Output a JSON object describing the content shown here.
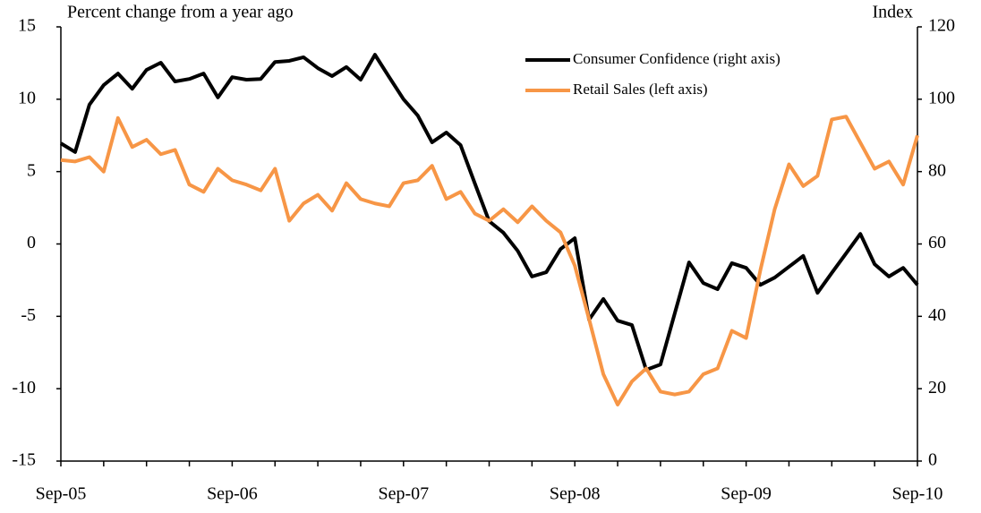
{
  "chart_data": {
    "type": "line",
    "y_label": "Percent change from a year ago",
    "y2_label": "Index",
    "categories": [
      "Sep-05",
      null,
      null,
      null,
      null,
      null,
      null,
      null,
      null,
      null,
      null,
      null,
      "Sep-06",
      null,
      null,
      null,
      null,
      null,
      null,
      null,
      null,
      null,
      null,
      null,
      "Sep-07",
      null,
      null,
      null,
      null,
      null,
      null,
      null,
      null,
      null,
      null,
      null,
      "Sep-08",
      null,
      null,
      null,
      null,
      null,
      null,
      null,
      null,
      null,
      null,
      null,
      "Sep-09",
      null,
      null,
      null,
      null,
      null,
      null,
      null,
      null,
      null,
      null,
      null,
      "Sep-10"
    ],
    "series": [
      {
        "name": "Consumer Confidence (right axis)",
        "color": "#000000",
        "axis": "y2",
        "values": [
          87.8,
          85.4,
          98.5,
          103.9,
          107.1,
          102.9,
          108.1,
          110.1,
          104.9,
          105.6,
          107.1,
          100.5,
          106.1,
          105.4,
          105.6,
          110.3,
          110.6,
          111.6,
          108.6,
          106.4,
          108.9,
          105.4,
          112.3,
          106.1,
          100,
          95.5,
          88.1,
          90.8,
          87.3,
          76.7,
          66.3,
          63.1,
          58.1,
          51,
          52.2,
          58.6,
          61.6,
          39.1,
          44.8,
          38.8,
          37.6,
          25.2,
          26.7,
          40.8,
          54.9,
          49.2,
          47.5,
          54.7,
          53.4,
          48.7,
          50.7,
          53.7,
          56.7,
          46.5,
          52,
          57.4,
          62.8,
          54.4,
          51,
          53.4,
          48.7
        ]
      },
      {
        "name": "Retail Sales (left axis)",
        "color": "#f79646",
        "values": [
          5.8,
          5.7,
          6.0,
          5.0,
          8.7,
          6.7,
          7.2,
          6.2,
          6.5,
          4.1,
          3.6,
          5.2,
          4.4,
          4.1,
          3.7,
          5.2,
          1.6,
          2.8,
          3.4,
          2.3,
          4.2,
          3.1,
          2.8,
          2.6,
          4.2,
          4.4,
          5.4,
          3.1,
          3.6,
          2.1,
          1.6,
          2.4,
          1.5,
          2.6,
          1.6,
          0.8,
          -1.5,
          -5.2,
          -9.0,
          -11.1,
          -9.5,
          -8.6,
          -10.2,
          -10.4,
          -10.2,
          -9.0,
          -8.6,
          -6.0,
          -6.5,
          -1.8,
          2.4,
          5.5,
          4.0,
          4.7,
          8.6,
          8.8,
          7.0,
          5.2,
          5.7,
          4.1,
          7.5
        ]
      }
    ],
    "ylim": [
      -15,
      15
    ],
    "yticks": [
      -15,
      -10,
      -5,
      0,
      5,
      10,
      15
    ],
    "y2lim": [
      0,
      120
    ],
    "y2ticks": [
      0,
      20,
      40,
      60,
      80,
      100,
      120
    ],
    "legend": "upper right",
    "grid": false
  }
}
